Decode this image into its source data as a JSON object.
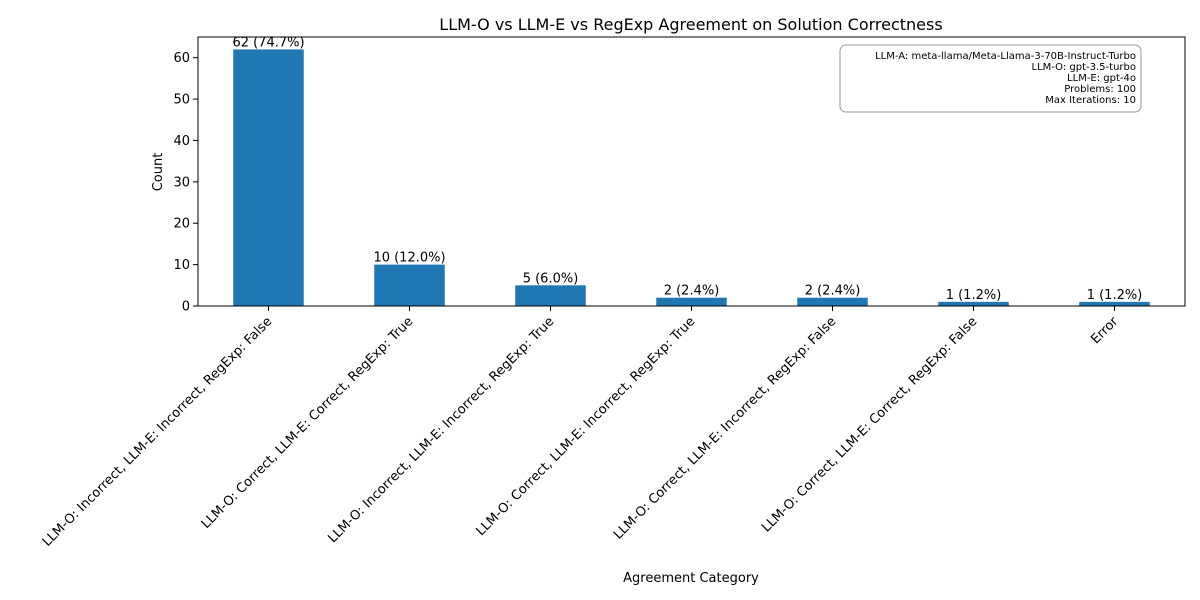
{
  "chart_data": {
    "type": "bar",
    "title": "LLM-O vs LLM-E vs RegExp Agreement on Solution Correctness",
    "xlabel": "Agreement Category",
    "ylabel": "Count",
    "categories": [
      "LLM-O: Incorrect, LLM-E: Incorrect, RegExp: False",
      "LLM-O: Correct, LLM-E: Correct, RegExp: True",
      "LLM-O: Incorrect, LLM-E: Incorrect, RegExp: True",
      "LLM-O: Correct, LLM-E: Incorrect, RegExp: True",
      "LLM-O: Correct, LLM-E: Incorrect, RegExp: False",
      "LLM-O: Correct, LLM-E: Correct, RegExp: False",
      "Error"
    ],
    "values": [
      62,
      10,
      5,
      2,
      2,
      1,
      1
    ],
    "data_labels": [
      "62 (74.7%)",
      "10 (12.0%)",
      "5 (6.0%)",
      "2 (2.4%)",
      "2 (2.4%)",
      "1 (1.2%)",
      "1 (1.2%)"
    ],
    "ylim": [
      0,
      65
    ],
    "yticks": [
      0,
      10,
      20,
      30,
      40,
      50,
      60
    ],
    "grid": false,
    "bar_color": "#1f77b4",
    "info_box": {
      "placement": "top-right",
      "lines": [
        "LLM-A: meta-llama/Meta-Llama-3-70B-Instruct-Turbo",
        "LLM-O: gpt-3.5-turbo",
        "LLM-E: gpt-4o",
        "Problems: 100",
        "Max Iterations: 10"
      ]
    }
  }
}
